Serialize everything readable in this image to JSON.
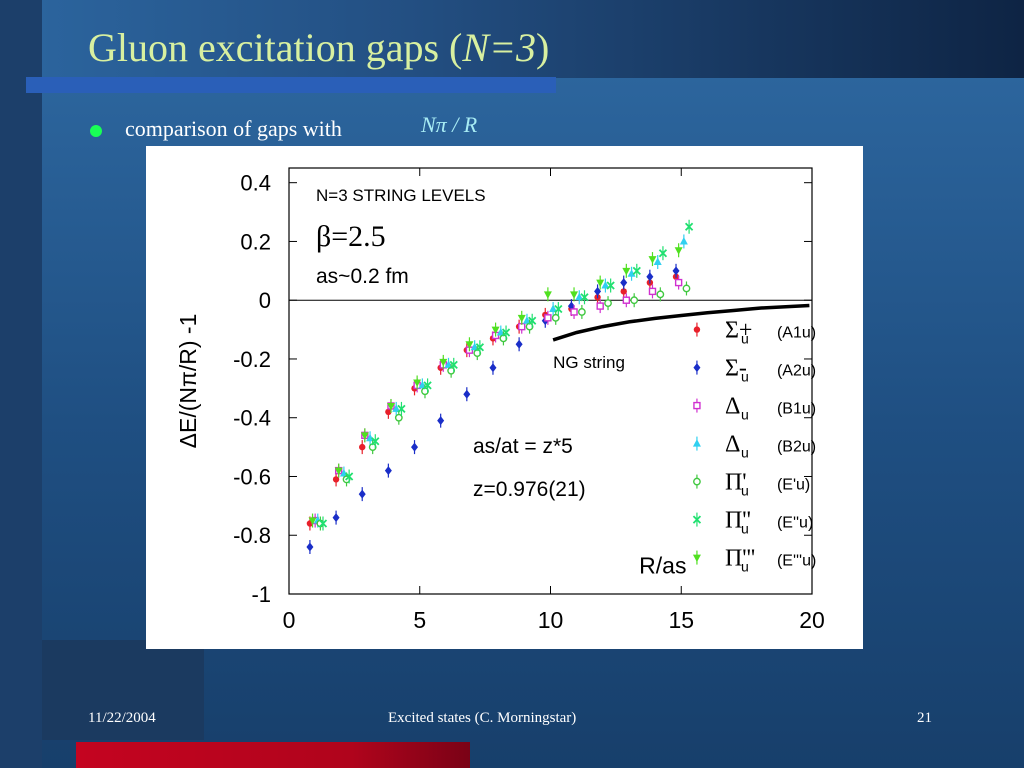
{
  "slide": {
    "title_prefix": "Gluon excitation gaps (",
    "title_var": "N",
    "title_eq": "=3",
    "title_suffix": ")",
    "bullet_text": "comparison of gaps with",
    "bullet_math": "Nπ / R",
    "footer_date": "11/22/2004",
    "footer_center": "Excited states (C. Morningstar)",
    "footer_page": "21"
  },
  "chart_data": {
    "type": "scatter",
    "title": "N=3 STRING LEVELS",
    "beta_label": "β=2.5",
    "spacing_label": "as~0.2 fm",
    "anisotropy_label": "as/at = z*5",
    "z_label": "z=0.976(21)",
    "curve_label": "NG string",
    "xlabel": "R/as",
    "ylabel": "ΔE/(Nπ/R) -1",
    "xlim": [
      0,
      20
    ],
    "ylim": [
      -1,
      0.45
    ],
    "xticks": [
      0,
      5,
      10,
      15,
      20
    ],
    "yticks": [
      0.4,
      0.2,
      0,
      -0.2,
      -0.4,
      -0.6,
      -0.8,
      -1
    ],
    "ytick_labels": [
      "0.4",
      "0.2",
      "0",
      "-0.2",
      "-0.4",
      "-0.6",
      "-0.8",
      "-1"
    ],
    "zero_line": true,
    "ng_string": {
      "x": [
        10.1,
        11,
        12,
        13,
        14,
        15,
        16,
        17,
        18,
        19.9
      ],
      "y": [
        -0.135,
        -0.11,
        -0.09,
        -0.074,
        -0.062,
        -0.052,
        -0.043,
        -0.035,
        -0.027,
        -0.018
      ]
    },
    "series": [
      {
        "sym": "Σ",
        "sup": "+",
        "irrep": "A1u",
        "color": "#e8202a",
        "marker": "circle",
        "x": [
          0.8,
          1.8,
          2.8,
          3.8,
          4.8,
          5.8,
          6.8,
          7.8,
          8.8,
          9.8,
          10.8,
          11.8,
          12.8,
          13.8,
          14.8
        ],
        "y": [
          -0.76,
          -0.61,
          -0.5,
          -0.38,
          -0.3,
          -0.23,
          -0.17,
          -0.13,
          -0.09,
          -0.05,
          -0.03,
          0.01,
          0.03,
          0.06,
          0.08
        ]
      },
      {
        "sym": "Σ",
        "sup": "-",
        "irrep": "A2u",
        "color": "#1a2ec8",
        "marker": "diamond",
        "x": [
          0.8,
          1.8,
          2.8,
          3.8,
          4.8,
          5.8,
          6.8,
          7.8,
          8.8,
          9.8,
          10.8,
          11.8,
          12.8,
          13.8,
          14.8
        ],
        "y": [
          -0.84,
          -0.74,
          -0.66,
          -0.58,
          -0.5,
          -0.41,
          -0.32,
          -0.23,
          -0.15,
          -0.07,
          -0.02,
          0.03,
          0.06,
          0.08,
          0.1
        ]
      },
      {
        "sym": "Δ",
        "sup": "",
        "irrep": "B1u",
        "color": "#d030d0",
        "marker": "square",
        "x": [
          1.0,
          1.9,
          2.9,
          3.9,
          4.9,
          5.9,
          6.9,
          7.9,
          8.9,
          9.9,
          10.9,
          11.9,
          12.9,
          13.9,
          14.9
        ],
        "y": [
          -0.75,
          -0.58,
          -0.46,
          -0.36,
          -0.29,
          -0.22,
          -0.17,
          -0.12,
          -0.09,
          -0.06,
          -0.04,
          -0.02,
          0.0,
          0.03,
          0.06
        ]
      },
      {
        "sym": "Δ",
        "sup": "",
        "irrep": "B2u",
        "color": "#30d0f0",
        "marker": "triangle-up",
        "x": [
          1.1,
          2.1,
          3.1,
          4.1,
          5.1,
          6.1,
          7.1,
          8.1,
          9.1,
          10.1,
          11.1,
          12.1,
          13.1,
          14.1,
          15.1
        ],
        "y": [
          -0.75,
          -0.59,
          -0.47,
          -0.37,
          -0.29,
          -0.22,
          -0.16,
          -0.11,
          -0.07,
          -0.03,
          0.01,
          0.05,
          0.09,
          0.13,
          0.2
        ]
      },
      {
        "sym": "Π",
        "sup": "'",
        "irrep": "E'u",
        "color": "#40c840",
        "marker": "circle-open",
        "x": [
          1.2,
          2.2,
          3.2,
          4.2,
          5.2,
          6.2,
          7.2,
          8.2,
          9.2,
          10.2,
          11.2,
          12.2,
          13.2,
          14.2,
          15.2
        ],
        "y": [
          -0.76,
          -0.61,
          -0.5,
          -0.4,
          -0.31,
          -0.24,
          -0.18,
          -0.13,
          -0.09,
          -0.06,
          -0.04,
          -0.01,
          0.0,
          0.02,
          0.04
        ]
      },
      {
        "sym": "Π",
        "sup": "''",
        "irrep": "E''u",
        "color": "#20e070",
        "marker": "x",
        "x": [
          1.3,
          2.3,
          3.3,
          4.3,
          5.3,
          6.3,
          7.3,
          8.3,
          9.3,
          10.3,
          11.3,
          12.3,
          13.3,
          14.3,
          15.3
        ],
        "y": [
          -0.76,
          -0.6,
          -0.48,
          -0.37,
          -0.29,
          -0.22,
          -0.16,
          -0.11,
          -0.07,
          -0.03,
          0.01,
          0.05,
          0.1,
          0.16,
          0.25
        ]
      },
      {
        "sym": "Π",
        "sup": "'''",
        "irrep": "E'''u",
        "color": "#50e020",
        "marker": "triangle-down",
        "x": [
          0.9,
          1.9,
          2.9,
          3.9,
          4.9,
          5.9,
          6.9,
          7.9,
          8.9,
          9.9,
          10.9,
          11.9,
          12.9,
          13.9,
          14.9
        ],
        "y": [
          -0.75,
          -0.58,
          -0.46,
          -0.36,
          -0.28,
          -0.21,
          -0.15,
          -0.1,
          -0.06,
          0.02,
          0.02,
          0.06,
          0.1,
          0.14,
          0.17
        ]
      }
    ],
    "legend_placement": "right"
  }
}
